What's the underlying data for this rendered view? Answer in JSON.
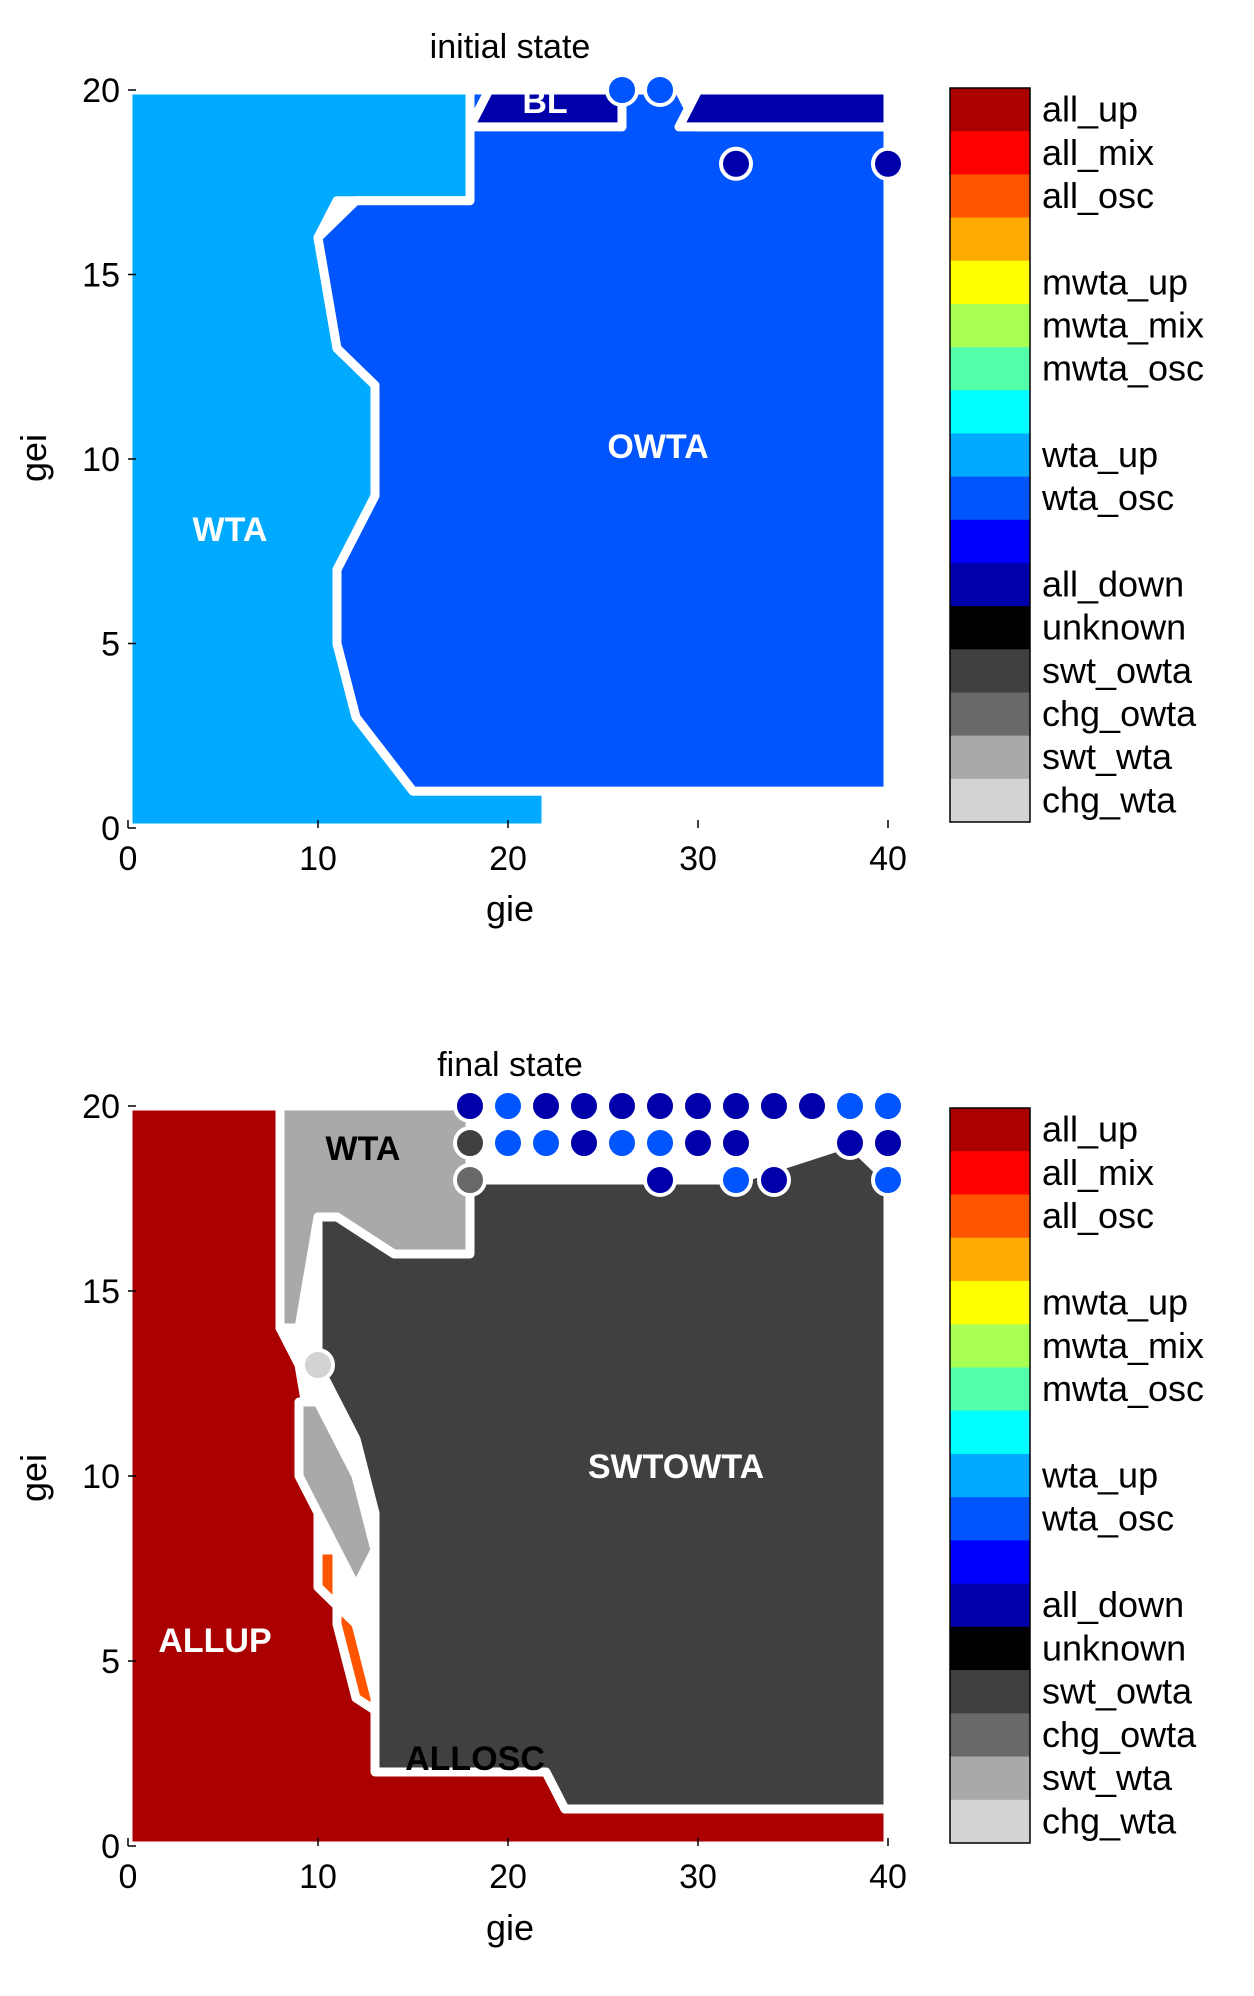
{
  "chart_data": [
    {
      "type": "heatmap",
      "title": "initial state",
      "xlabel": "gie",
      "ylabel": "gei",
      "xlim": [
        0,
        40
      ],
      "ylim": [
        0,
        20
      ],
      "xticks": [
        "0",
        "10",
        "20",
        "30",
        "40"
      ],
      "yticks": [
        "0",
        "5",
        "10",
        "15",
        "20"
      ],
      "grid": false,
      "region_labels": [
        {
          "text": "BL",
          "color": "#ffffff"
        },
        {
          "text": "OWTA",
          "color": "#ffffff"
        },
        {
          "text": "WTA",
          "color": "#ffffff"
        }
      ],
      "regions": [
        {
          "state": "wta_up",
          "outline": [
            [
              0,
              0
            ],
            [
              22,
              0
            ],
            [
              22,
              1
            ],
            [
              15,
              1
            ],
            [
              12,
              3
            ],
            [
              11,
              5
            ],
            [
              11,
              7
            ],
            [
              13,
              9
            ],
            [
              13,
              12
            ],
            [
              11,
              13
            ],
            [
              10,
              16
            ],
            [
              11,
              17
            ],
            [
              18,
              17
            ],
            [
              18,
              20
            ],
            [
              0,
              20
            ]
          ]
        },
        {
          "state": "wta_osc",
          "outline": [
            [
              22,
              1
            ],
            [
              40,
              1
            ],
            [
              40,
              19
            ],
            [
              30,
              19
            ],
            [
              29,
              20
            ],
            [
              18,
              20
            ],
            [
              18,
              17
            ],
            [
              15,
              17
            ],
            [
              12,
              17
            ],
            [
              10,
              16
            ],
            [
              11,
              13
            ],
            [
              13,
              12
            ],
            [
              13,
              9
            ],
            [
              11,
              7
            ],
            [
              11,
              5
            ],
            [
              12,
              3
            ],
            [
              15,
              1
            ]
          ]
        },
        {
          "state": "all_down",
          "outline": [
            [
              18,
              19
            ],
            [
              19,
              20
            ],
            [
              26,
              20
            ],
            [
              26,
              19
            ]
          ]
        },
        {
          "state": "all_down",
          "outline": [
            [
              29,
              19
            ],
            [
              30,
              20
            ],
            [
              40,
              20
            ],
            [
              40,
              19
            ]
          ]
        }
      ],
      "dots": [
        {
          "gie": 26,
          "gei": 20,
          "state": "wta_osc"
        },
        {
          "gie": 28,
          "gei": 20,
          "state": "wta_osc"
        },
        {
          "gie": 32,
          "gei": 18,
          "state": "all_down"
        },
        {
          "gie": 40,
          "gei": 18,
          "state": "all_down"
        }
      ]
    },
    {
      "type": "heatmap",
      "title": "final state",
      "xlabel": "gie",
      "ylabel": "gei",
      "xlim": [
        0,
        40
      ],
      "ylim": [
        0,
        20
      ],
      "xticks": [
        "0",
        "10",
        "20",
        "30",
        "40"
      ],
      "yticks": [
        "0",
        "5",
        "10",
        "15",
        "20"
      ],
      "grid": false,
      "region_labels": [
        {
          "text": "WTA",
          "color": "#000000"
        },
        {
          "text": "SWTOWTA",
          "color": "#ffffff"
        },
        {
          "text": "ALLUP",
          "color": "#ffffff"
        },
        {
          "text": "ALLOSC",
          "color": "#000000"
        }
      ],
      "regions": [
        {
          "state": "all_up",
          "outline": [
            [
              0,
              0
            ],
            [
              40,
              0
            ],
            [
              40,
              1
            ],
            [
              23,
              1
            ],
            [
              22,
              2
            ],
            [
              15,
              2
            ],
            [
              13,
              4
            ],
            [
              12,
              6
            ],
            [
              10,
              7
            ],
            [
              10,
              10
            ],
            [
              9,
              13
            ],
            [
              8,
              14
            ],
            [
              8,
              20
            ],
            [
              0,
              20
            ]
          ]
        },
        {
          "state": "all_osc",
          "outline": [
            [
              23,
              1
            ],
            [
              40,
              1
            ],
            [
              40,
              2
            ],
            [
              22,
              2
            ],
            [
              19,
              3
            ],
            [
              13,
              3
            ],
            [
              13,
              4
            ],
            [
              12,
              6
            ],
            [
              10,
              7
            ],
            [
              10,
              8
            ],
            [
              11,
              8
            ],
            [
              11,
              6
            ],
            [
              12,
              4
            ],
            [
              15,
              3
            ],
            [
              22,
              2
            ]
          ]
        },
        {
          "state": "swt_wta",
          "outline": [
            [
              8,
              20
            ],
            [
              18,
              20
            ],
            [
              18,
              16
            ],
            [
              14,
              16
            ],
            [
              11,
              17
            ],
            [
              10,
              17
            ],
            [
              9,
              14
            ],
            [
              8,
              14
            ]
          ]
        },
        {
          "state": "swt_wta",
          "outline": [
            [
              9,
              12
            ],
            [
              10,
              12
            ],
            [
              12,
              10
            ],
            [
              13,
              8
            ],
            [
              12,
              7
            ],
            [
              11,
              8
            ],
            [
              10,
              9
            ],
            [
              9,
              10
            ]
          ]
        },
        {
          "state": "swt_owta",
          "outline": [
            [
              13,
              2
            ],
            [
              22,
              2
            ],
            [
              23,
              1
            ],
            [
              40,
              1
            ],
            [
              40,
              18
            ],
            [
              38,
              19
            ],
            [
              32,
              18
            ],
            [
              18,
              18
            ],
            [
              18,
              16
            ],
            [
              14,
              16
            ],
            [
              11,
              17
            ],
            [
              10,
              17
            ],
            [
              10,
              13
            ],
            [
              12,
              11
            ],
            [
              13,
              9
            ],
            [
              13,
              5
            ]
          ]
        }
      ],
      "dots": [
        {
          "gie": 10,
          "gei": 13,
          "state": "chg_wta"
        },
        {
          "gie": 18,
          "gei": 20,
          "state": "all_down"
        },
        {
          "gie": 18,
          "gei": 19,
          "state": "swt_owta"
        },
        {
          "gie": 18,
          "gei": 18,
          "state": "chg_owta"
        },
        {
          "gie": 20,
          "gei": 20,
          "state": "wta_osc"
        },
        {
          "gie": 20,
          "gei": 19,
          "state": "wta_osc"
        },
        {
          "gie": 22,
          "gei": 19,
          "state": "wta_osc"
        },
        {
          "gie": 22,
          "gei": 20,
          "state": "all_down"
        },
        {
          "gie": 24,
          "gei": 20,
          "state": "all_down"
        },
        {
          "gie": 26,
          "gei": 20,
          "state": "all_down"
        },
        {
          "gie": 28,
          "gei": 20,
          "state": "all_down"
        },
        {
          "gie": 30,
          "gei": 20,
          "state": "all_down"
        },
        {
          "gie": 32,
          "gei": 20,
          "state": "all_down"
        },
        {
          "gie": 34,
          "gei": 20,
          "state": "all_down"
        },
        {
          "gie": 36,
          "gei": 20,
          "state": "all_down"
        },
        {
          "gie": 24,
          "gei": 19,
          "state": "all_down"
        },
        {
          "gie": 26,
          "gei": 19,
          "state": "wta_osc"
        },
        {
          "gie": 28,
          "gei": 19,
          "state": "wta_osc"
        },
        {
          "gie": 28,
          "gei": 18,
          "state": "all_down"
        },
        {
          "gie": 30,
          "gei": 19,
          "state": "all_down"
        },
        {
          "gie": 32,
          "gei": 19,
          "state": "all_down"
        },
        {
          "gie": 32,
          "gei": 18,
          "state": "wta_osc"
        },
        {
          "gie": 34,
          "gei": 18,
          "state": "all_down"
        },
        {
          "gie": 38,
          "gei": 20,
          "state": "wta_osc"
        },
        {
          "gie": 40,
          "gei": 20,
          "state": "wta_osc"
        },
        {
          "gie": 38,
          "gei": 19,
          "state": "all_down"
        },
        {
          "gie": 40,
          "gei": 19,
          "state": "all_down"
        },
        {
          "gie": 40,
          "gei": 18,
          "state": "wta_osc"
        }
      ]
    }
  ],
  "colorbar": {
    "labels": [
      {
        "text": "all_up",
        "state": "all_up"
      },
      {
        "text": "all_mix",
        "state": "all_mix"
      },
      {
        "text": "all_osc",
        "state": "all_osc"
      },
      {
        "text": "",
        "state": "gap1"
      },
      {
        "text": "mwta_up",
        "state": "mwta_up"
      },
      {
        "text": "mwta_mix",
        "state": "mwta_mix"
      },
      {
        "text": "mwta_osc",
        "state": "mwta_osc"
      },
      {
        "text": "",
        "state": "gap2"
      },
      {
        "text": "wta_up",
        "state": "wta_up"
      },
      {
        "text": "wta_osc",
        "state": "wta_osc"
      },
      {
        "text": "",
        "state": "gap3"
      },
      {
        "text": "all_down",
        "state": "all_down"
      },
      {
        "text": "unknown",
        "state": "unknown"
      },
      {
        "text": "swt_owta",
        "state": "swt_owta"
      },
      {
        "text": "chg_owta",
        "state": "chg_owta"
      },
      {
        "text": "swt_wta",
        "state": "swt_wta"
      },
      {
        "text": "chg_wta",
        "state": "chg_wta"
      }
    ]
  },
  "colors": {
    "all_up": "#aa0000",
    "all_mix": "#ff0000",
    "all_osc": "#ff5500",
    "gap1": "#ffaa00",
    "mwta_up": "#ffff00",
    "mwta_mix": "#aaff55",
    "mwta_osc": "#55ffaa",
    "gap2": "#00ffff",
    "wta_up": "#00aaff",
    "wta_osc": "#0055ff",
    "gap3": "#0000ff",
    "all_down": "#0000aa",
    "unknown": "#000000",
    "swt_owta": "#404040",
    "chg_owta": "#696969",
    "swt_wta": "#a9a9a9",
    "chg_wta": "#d3d3d3"
  }
}
